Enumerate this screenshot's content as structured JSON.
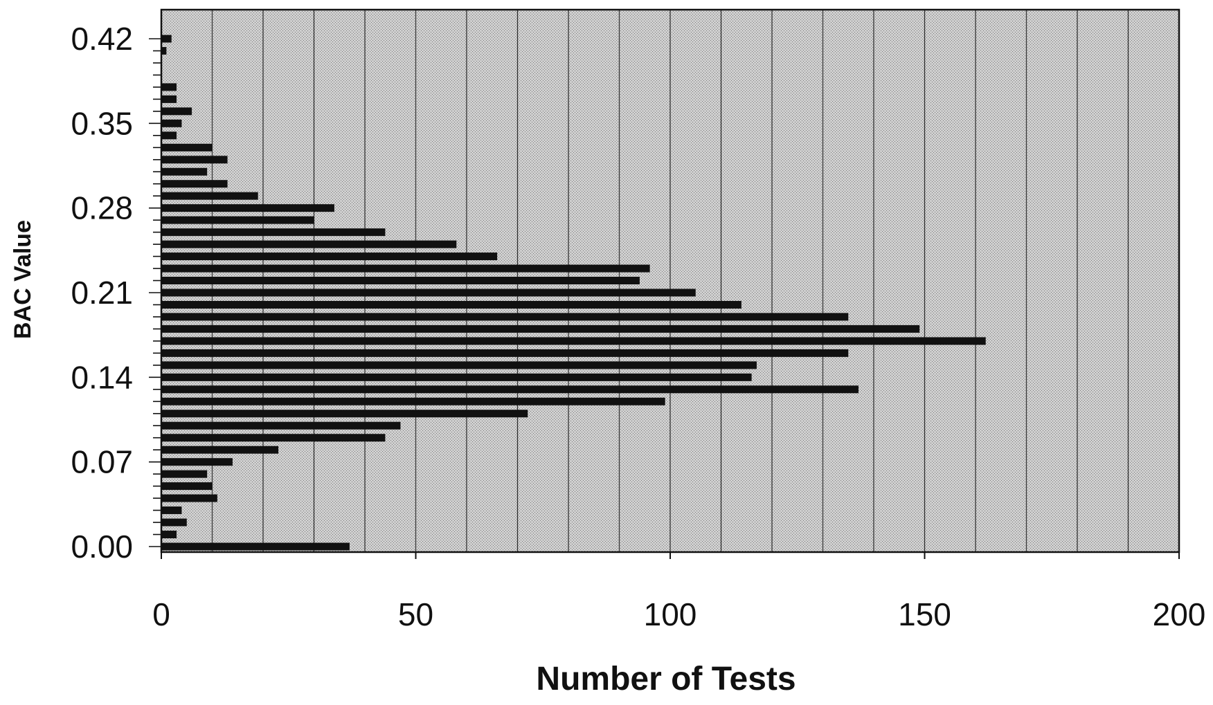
{
  "chart_data": {
    "type": "bar",
    "orientation": "horizontal",
    "title": "",
    "xlabel": "Number of Tests",
    "ylabel": "BAC Value",
    "xlim": [
      0,
      200
    ],
    "ylim": [
      0,
      0.43
    ],
    "xticks": [
      "0",
      "50",
      "100",
      "150",
      "200"
    ],
    "yticks": [
      "0.00",
      "0.07",
      "0.14",
      "0.21",
      "0.28",
      "0.35",
      "0.42"
    ],
    "grid": "vertical lines every 10",
    "plot_background": "stippled gray",
    "bar_color": "#111111",
    "bac_values": [
      0.0,
      0.01,
      0.02,
      0.03,
      0.04,
      0.05,
      0.06,
      0.07,
      0.08,
      0.09,
      0.1,
      0.11,
      0.12,
      0.13,
      0.14,
      0.15,
      0.16,
      0.17,
      0.18,
      0.19,
      0.2,
      0.21,
      0.22,
      0.23,
      0.24,
      0.25,
      0.26,
      0.27,
      0.28,
      0.29,
      0.3,
      0.31,
      0.32,
      0.33,
      0.34,
      0.35,
      0.36,
      0.37,
      0.38,
      0.39,
      0.4,
      0.41,
      0.42
    ],
    "values": [
      37,
      3,
      5,
      4,
      11,
      10,
      9,
      14,
      23,
      44,
      47,
      72,
      99,
      137,
      116,
      117,
      135,
      162,
      149,
      135,
      114,
      105,
      94,
      96,
      66,
      58,
      44,
      30,
      34,
      19,
      13,
      9,
      13,
      10,
      3,
      4,
      6,
      3,
      3,
      0,
      0,
      1,
      2
    ]
  }
}
